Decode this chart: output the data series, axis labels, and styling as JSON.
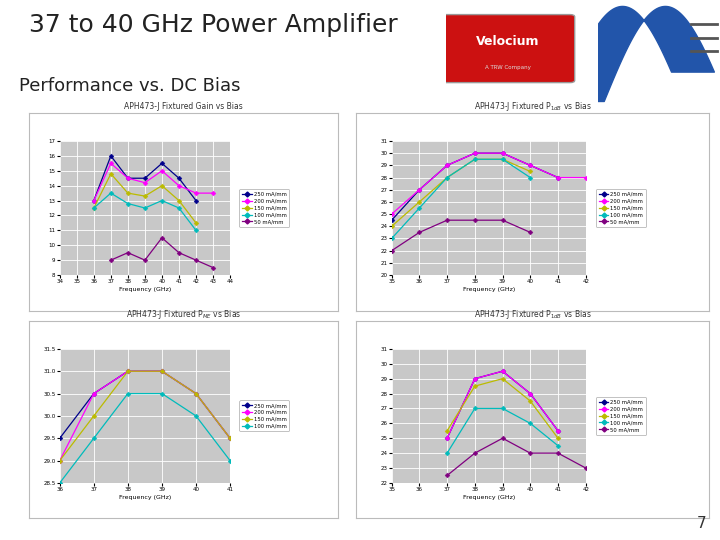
{
  "title": "37 to 40 GHz Power Amplifier",
  "subtitle": "Performance vs. DC Bias",
  "page_number": "7",
  "bg_color": "#F0F0F0",
  "title_fontsize": 18,
  "subtitle_fontsize": 13,
  "plot1": {
    "title": "APH473-J Fixtured Gain vs Bias",
    "xlabel": "Frequency (GHz)",
    "xlim": [
      34,
      44
    ],
    "xticks": [
      34,
      35,
      36,
      37,
      38,
      39,
      40,
      41,
      42,
      43,
      44
    ],
    "ylim": [
      8,
      17
    ],
    "yticks": [
      8,
      9,
      10,
      11,
      12,
      13,
      14,
      15,
      16,
      17
    ],
    "series": [
      {
        "label": "250 mA/mm",
        "color": "#00008B",
        "marker": "D",
        "x": [
          36,
          37,
          38,
          39,
          40,
          41,
          42,
          43
        ],
        "y": [
          13.0,
          16.0,
          14.5,
          14.5,
          15.5,
          14.5,
          13.0,
          null
        ]
      },
      {
        "label": "200 mA/mm",
        "color": "#FF00FF",
        "marker": "D",
        "x": [
          36,
          37,
          38,
          39,
          40,
          41,
          42,
          43
        ],
        "y": [
          13.0,
          15.5,
          14.5,
          14.2,
          15.0,
          14.0,
          13.5,
          13.5
        ]
      },
      {
        "label": "150 mA/mm",
        "color": "#BBBB00",
        "marker": "D",
        "x": [
          36,
          37,
          38,
          39,
          40,
          41,
          42,
          43
        ],
        "y": [
          12.5,
          14.8,
          13.5,
          13.3,
          14.0,
          13.0,
          11.5,
          null
        ]
      },
      {
        "label": "100 mA/mm",
        "color": "#00BBBB",
        "marker": "D",
        "x": [
          36,
          37,
          38,
          39,
          40,
          41,
          42,
          43
        ],
        "y": [
          12.5,
          13.5,
          12.8,
          12.5,
          13.0,
          12.5,
          11.0,
          null
        ]
      },
      {
        "label": "50 mA/mm",
        "color": "#800080",
        "marker": "D",
        "x": [
          36,
          37,
          38,
          39,
          40,
          41,
          42,
          43
        ],
        "y": [
          null,
          9.0,
          9.5,
          9.0,
          10.5,
          9.5,
          9.0,
          8.5
        ]
      }
    ]
  },
  "plot2": {
    "title": "APH473-J Fixtured P1dB vs Bias",
    "xlabel": "Frequency (GHz)",
    "xlim": [
      35,
      42
    ],
    "xticks": [
      35,
      36,
      37,
      38,
      39,
      40,
      41,
      42
    ],
    "ylim": [
      20,
      31
    ],
    "yticks": [
      20,
      21,
      22,
      23,
      24,
      25,
      26,
      27,
      28,
      29,
      30,
      31
    ],
    "series": [
      {
        "label": "250 mA/mm",
        "color": "#00008B",
        "marker": "D",
        "x": [
          35,
          36,
          37,
          38,
          39,
          40,
          41,
          42
        ],
        "y": [
          24.5,
          27.0,
          29.0,
          30.0,
          30.0,
          29.0,
          28.0,
          null
        ]
      },
      {
        "label": "200 mA/mm",
        "color": "#FF00FF",
        "marker": "D",
        "x": [
          35,
          36,
          37,
          38,
          39,
          40,
          41,
          42
        ],
        "y": [
          25.0,
          27.0,
          29.0,
          30.0,
          30.0,
          29.0,
          28.0,
          28.0
        ]
      },
      {
        "label": "150 mA/mm",
        "color": "#BBBB00",
        "marker": "D",
        "x": [
          35,
          36,
          37,
          38,
          39,
          40,
          41,
          42
        ],
        "y": [
          24.0,
          26.0,
          28.0,
          29.5,
          29.5,
          28.5,
          null,
          null
        ]
      },
      {
        "label": "100 mA/mm",
        "color": "#00BBBB",
        "marker": "D",
        "x": [
          35,
          36,
          37,
          38,
          39,
          40,
          41,
          42
        ],
        "y": [
          23.0,
          25.5,
          28.0,
          29.5,
          29.5,
          28.0,
          null,
          null
        ]
      },
      {
        "label": "50 mA/mm",
        "color": "#800080",
        "marker": "D",
        "x": [
          35,
          36,
          37,
          38,
          39,
          40,
          41,
          42
        ],
        "y": [
          22.0,
          23.5,
          24.5,
          24.5,
          24.5,
          23.5,
          null,
          null
        ]
      }
    ]
  },
  "plot3": {
    "title": "APH473-J Fixtured PME vs Bias",
    "xlabel": "Frequency (GHz)",
    "xlim": [
      36,
      41
    ],
    "xticks": [
      36,
      37,
      38,
      39,
      40,
      41
    ],
    "ylim": [
      28.5,
      31.5
    ],
    "yticks": [
      28.5,
      29.0,
      29.5,
      30.0,
      30.5,
      31.0,
      31.5
    ],
    "series": [
      {
        "label": "250 mA/mm",
        "color": "#00008B",
        "marker": "D",
        "x": [
          36,
          37,
          38,
          39,
          40,
          41
        ],
        "y": [
          29.5,
          30.5,
          31.0,
          31.0,
          30.5,
          29.5
        ]
      },
      {
        "label": "200 mA/mm",
        "color": "#FF00FF",
        "marker": "D",
        "x": [
          36,
          37,
          38,
          39,
          40,
          41
        ],
        "y": [
          29.0,
          30.5,
          31.0,
          31.0,
          30.5,
          29.5
        ]
      },
      {
        "label": "150 mA/mm",
        "color": "#BBBB00",
        "marker": "D",
        "x": [
          36,
          37,
          38,
          39,
          40,
          41
        ],
        "y": [
          29.0,
          30.0,
          31.0,
          31.0,
          30.5,
          29.5
        ]
      },
      {
        "label": "100 mA/mm",
        "color": "#00BBBB",
        "marker": "D",
        "x": [
          36,
          37,
          38,
          39,
          40,
          41
        ],
        "y": [
          28.5,
          29.5,
          30.5,
          30.5,
          30.0,
          29.0
        ]
      }
    ]
  },
  "plot4": {
    "title": "APH473-J Fixtured P1dB vs Bias",
    "xlabel": "Frequency (GHz)",
    "xlim": [
      35,
      42
    ],
    "xticks": [
      35,
      36,
      37,
      38,
      39,
      40,
      41,
      42
    ],
    "ylim": [
      22,
      31
    ],
    "yticks": [
      22,
      23,
      24,
      25,
      26,
      27,
      28,
      29,
      30,
      31
    ],
    "series": [
      {
        "label": "250 mA/mm",
        "color": "#00008B",
        "marker": "D",
        "x": [
          35,
          36,
          37,
          38,
          39,
          40,
          41,
          42
        ],
        "y": [
          null,
          null,
          25.0,
          29.0,
          29.5,
          28.0,
          25.5,
          null
        ]
      },
      {
        "label": "200 mA/mm",
        "color": "#FF00FF",
        "marker": "D",
        "x": [
          35,
          36,
          37,
          38,
          39,
          40,
          41,
          42
        ],
        "y": [
          null,
          null,
          25.0,
          29.0,
          29.5,
          28.0,
          25.5,
          null
        ]
      },
      {
        "label": "150 mA/mm",
        "color": "#BBBB00",
        "marker": "D",
        "x": [
          35,
          36,
          37,
          38,
          39,
          40,
          41,
          42
        ],
        "y": [
          null,
          null,
          25.5,
          28.5,
          29.0,
          27.5,
          25.0,
          null
        ]
      },
      {
        "label": "100 mA/mm",
        "color": "#00BBBB",
        "marker": "D",
        "x": [
          35,
          36,
          37,
          38,
          39,
          40,
          41,
          42
        ],
        "y": [
          null,
          null,
          24.0,
          27.0,
          27.0,
          26.0,
          24.5,
          null
        ]
      },
      {
        "label": "50 mA/mm",
        "color": "#800080",
        "marker": "D",
        "x": [
          35,
          36,
          37,
          38,
          39,
          40,
          41,
          42
        ],
        "y": [
          null,
          null,
          22.5,
          24.0,
          25.0,
          24.0,
          24.0,
          23.0
        ]
      }
    ]
  }
}
